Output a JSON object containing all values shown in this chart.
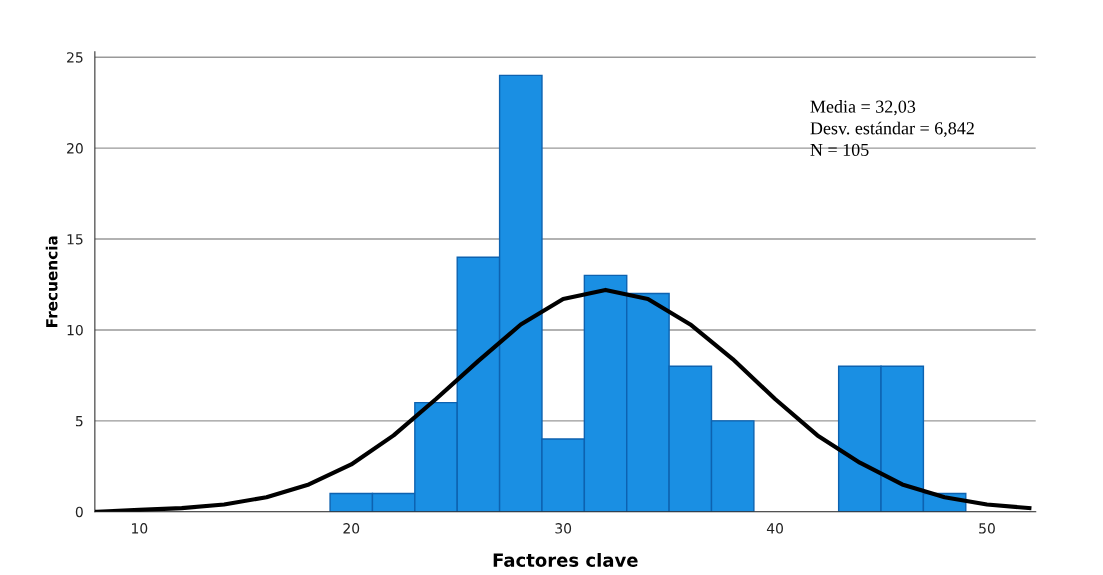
{
  "chart_data": {
    "type": "histogram",
    "xlabel": "Factores clave",
    "ylabel": "Frecuencia",
    "bins": [
      19,
      21,
      23,
      25,
      27,
      29,
      31,
      33,
      35,
      37,
      39,
      41,
      43,
      45,
      47,
      49
    ],
    "values": [
      1,
      1,
      6,
      14,
      24,
      4,
      13,
      12,
      8,
      5,
      0,
      0,
      8,
      8,
      1
    ],
    "color": "#1a8fe3",
    "series": [
      {
        "type": "line",
        "color": "#000000",
        "x": [
          8,
          10,
          12,
          14,
          16,
          18,
          20,
          22,
          24,
          26,
          28,
          30,
          32,
          34,
          36,
          38,
          40,
          42,
          44,
          46,
          48,
          50,
          52
        ],
        "values": [
          0.0,
          0.1,
          0.2,
          0.4,
          0.8,
          1.5,
          2.6,
          4.2,
          6.2,
          8.3,
          10.3,
          11.7,
          12.2,
          11.7,
          10.3,
          8.4,
          6.2,
          4.2,
          2.7,
          1.5,
          0.8,
          0.4,
          0.2
        ]
      }
    ],
    "annotations": [
      "Media = 32,03",
      "Desv. estándar = 6,842",
      "N = 105"
    ],
    "xlim": [
      7.9,
      52.3
    ],
    "ylim": [
      0,
      25.3
    ],
    "xticks": [
      10,
      20,
      30,
      40,
      50
    ],
    "yticks": [
      0,
      5,
      10,
      15,
      20,
      25
    ],
    "grid": "y"
  }
}
